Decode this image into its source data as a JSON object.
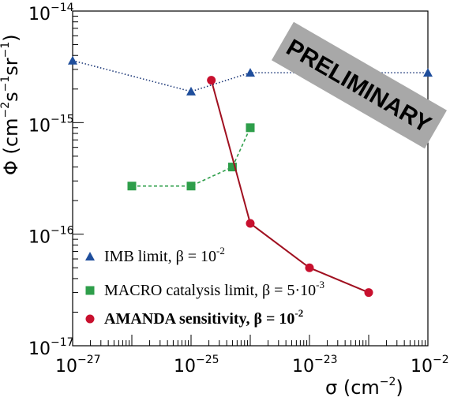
{
  "chart_data": {
    "type": "scatter",
    "xscale": "log",
    "yscale": "log",
    "xlim": [
      1e-27,
      1e-21
    ],
    "ylim": [
      1e-17,
      1e-14
    ],
    "xlabel": "σ (cm",
    "xlabel_sup": "−2",
    "xlabel_tail": ")",
    "ylabel": "Φ (cm",
    "ylabel_sup1": "−2",
    "ylabel_mid1": "s",
    "ylabel_sup2": "−1",
    "ylabel_mid2": "sr",
    "ylabel_sup3": "−1",
    "ylabel_tail": ")",
    "x_ticks": [
      {
        "value": 1e-27,
        "base": "10",
        "exp": "−27"
      },
      {
        "value": 1e-25,
        "base": "10",
        "exp": "−25"
      },
      {
        "value": 1e-23,
        "base": "10",
        "exp": "−23"
      },
      {
        "value": 1e-21,
        "base": "10",
        "exp": "−21"
      }
    ],
    "y_ticks": [
      {
        "value": 1e-14,
        "base": "10",
        "exp": "−14"
      },
      {
        "value": 1e-15,
        "base": "10",
        "exp": "−15"
      },
      {
        "value": 1e-16,
        "base": "10",
        "exp": "−16"
      },
      {
        "value": 1e-17,
        "base": "10",
        "exp": "−17"
      }
    ],
    "watermark": "PRELIMINARY",
    "legend_position": "bottom-left",
    "series": [
      {
        "name": "IMB limit, β = 10",
        "name_sup": "-2",
        "marker": "triangle",
        "color": "#1f4e9c",
        "line_color": "#1f3a7a",
        "line_style": "dotted",
        "x": [
          1e-27,
          1e-25,
          1e-24,
          1e-23,
          1e-21
        ],
        "y": [
          3.6e-15,
          1.9e-15,
          2.8e-15,
          2.8e-15,
          2.8e-15
        ]
      },
      {
        "name": "MACRO catalysis limit, β = 5·10",
        "name_sup": "-3",
        "marker": "square",
        "color": "#2e9e4a",
        "line_color": "#2e9e4a",
        "line_style": "dashed",
        "x": [
          1e-26,
          1e-25,
          5e-25,
          1e-24
        ],
        "y": [
          2.7e-16,
          2.7e-16,
          4e-16,
          9e-16
        ]
      },
      {
        "name": "AMANDA sensitivity, β = 10",
        "name_sup": "-2",
        "marker": "circle",
        "color": "#c8102e",
        "line_color": "#a01020",
        "line_style": "solid",
        "bold": true,
        "x": [
          2.2e-25,
          1e-24,
          1e-23,
          1e-22
        ],
        "y": [
          2.4e-15,
          1.25e-16,
          5e-17,
          3e-17
        ]
      }
    ]
  }
}
